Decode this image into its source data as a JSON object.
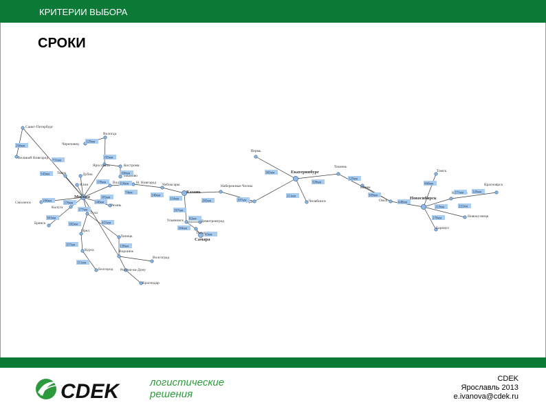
{
  "header": {
    "title": "КРИТЕРИИ ВЫБОРА"
  },
  "slide": {
    "heading": "СРОКИ"
  },
  "logo": {
    "brand": "CDEK",
    "tagline_1": "логистические",
    "tagline_2": "решения"
  },
  "footer": {
    "company": "CDEK",
    "city_year": "Ярославль 2013",
    "email": "e.ivanova@cdek.ru"
  },
  "colors": {
    "brand_green": "#0a7a36",
    "distance_box": "#a9cdf0",
    "node": "#8fb8e6"
  },
  "map": {
    "cities": [
      {
        "id": "spb",
        "label": "Санкт-Петербург"
      },
      {
        "id": "cherepovets",
        "label": "Череповец"
      },
      {
        "id": "vologda",
        "label": "Вологда"
      },
      {
        "id": "vnovgorod",
        "label": "Великий Новгород"
      },
      {
        "id": "kostroma",
        "label": "Кострома"
      },
      {
        "id": "yaroslavl",
        "label": "Ярославль"
      },
      {
        "id": "ivanovo",
        "label": "Иваново"
      },
      {
        "id": "tver",
        "label": "Тверь"
      },
      {
        "id": "dubna",
        "label": "Дубна"
      },
      {
        "id": "klin",
        "label": "Клин"
      },
      {
        "id": "vladimir",
        "label": "Владимир"
      },
      {
        "id": "nnovgorod",
        "label": "Н. Новгород"
      },
      {
        "id": "cheboksary",
        "label": "Чебоксары"
      },
      {
        "id": "kazan",
        "label": "Казань"
      },
      {
        "id": "chelny",
        "label": "Набережные Челны"
      },
      {
        "id": "ufa",
        "label": "Уфа"
      },
      {
        "id": "perm",
        "label": "Пермь"
      },
      {
        "id": "ekb",
        "label": "Екатеринбург"
      },
      {
        "id": "chelyabinsk",
        "label": "Челябинск"
      },
      {
        "id": "tyumen",
        "label": "Тюмень"
      },
      {
        "id": "ishim",
        "label": "Ишим"
      },
      {
        "id": "omsk",
        "label": "Омск"
      },
      {
        "id": "nsk",
        "label": "Новосибирск"
      },
      {
        "id": "tomsk",
        "label": "Томск"
      },
      {
        "id": "kemerovo",
        "label": "Кемерово"
      },
      {
        "id": "krasnoyarsk",
        "label": "Красноярск"
      },
      {
        "id": "novokuznetsk",
        "label": "Новокузнецк"
      },
      {
        "id": "barnaul",
        "label": "Барнаул"
      },
      {
        "id": "moscow",
        "label": "Москва"
      },
      {
        "id": "smolensk",
        "label": "Смоленск"
      },
      {
        "id": "kaluga",
        "label": "Калуга"
      },
      {
        "id": "bryansk",
        "label": "Брянск"
      },
      {
        "id": "tula",
        "label": "Тула"
      },
      {
        "id": "ryazan",
        "label": "Рязань"
      },
      {
        "id": "orel",
        "label": "Орел"
      },
      {
        "id": "kursk",
        "label": "Курск"
      },
      {
        "id": "belgorod",
        "label": "Белгород"
      },
      {
        "id": "lipetsk",
        "label": "Липецк"
      },
      {
        "id": "voronezh",
        "label": "Воронеж"
      },
      {
        "id": "volgograd",
        "label": "Волгоград"
      },
      {
        "id": "rostov",
        "label": "Ростов-на-Дону"
      },
      {
        "id": "krasnodar",
        "label": "Краснодар"
      },
      {
        "id": "ulyanovsk",
        "label": "Ульяновск"
      },
      {
        "id": "dimitrovgrad",
        "label": "Димитровград"
      },
      {
        "id": "togliatti",
        "label": "Тольятти"
      },
      {
        "id": "samara",
        "label": "Самара"
      }
    ],
    "distances": [
      {
        "id": "d1",
        "label": "206км"
      },
      {
        "id": "d2",
        "label": "731км"
      },
      {
        "id": "d3",
        "label": "543км"
      },
      {
        "id": "d4",
        "label": "129км"
      },
      {
        "id": "d5",
        "label": "193км"
      },
      {
        "id": "d6",
        "label": "106км"
      },
      {
        "id": "d7",
        "label": "110км"
      },
      {
        "id": "d8",
        "label": "178км"
      },
      {
        "id": "d9",
        "label": "183км"
      },
      {
        "id": "d10",
        "label": "74км"
      },
      {
        "id": "d11",
        "label": "240км"
      },
      {
        "id": "d12",
        "label": "154км"
      },
      {
        "id": "d13",
        "label": "283км"
      },
      {
        "id": "d14",
        "label": "397км"
      },
      {
        "id": "d15",
        "label": "383км"
      },
      {
        "id": "d16",
        "label": "328км"
      },
      {
        "id": "d17",
        "label": "529км"
      },
      {
        "id": "d18",
        "label": "211км"
      },
      {
        "id": "d19",
        "label": "309км"
      },
      {
        "id": "d20",
        "label": "648км"
      },
      {
        "id": "d21",
        "label": "660км"
      },
      {
        "id": "d22",
        "label": "271км"
      },
      {
        "id": "d23",
        "label": "320км"
      },
      {
        "id": "d24",
        "label": "219км"
      },
      {
        "id": "d25",
        "label": "222км"
      },
      {
        "id": "d26",
        "label": "270км"
      },
      {
        "id": "d27",
        "label": "200км"
      },
      {
        "id": "d28",
        "label": "176км"
      },
      {
        "id": "d29",
        "label": "140км"
      },
      {
        "id": "d30",
        "label": "177км"
      },
      {
        "id": "d31",
        "label": "301км"
      },
      {
        "id": "d32",
        "label": "182км"
      },
      {
        "id": "d33",
        "label": "455км"
      },
      {
        "id": "d34",
        "label": "157км"
      },
      {
        "id": "d35",
        "label": "151км"
      },
      {
        "id": "d36",
        "label": "128км"
      },
      {
        "id": "d37",
        "label": "267км"
      },
      {
        "id": "d38",
        "label": "82км"
      },
      {
        "id": "d39",
        "label": "164км"
      },
      {
        "id": "d40",
        "label": "65км"
      }
    ]
  }
}
